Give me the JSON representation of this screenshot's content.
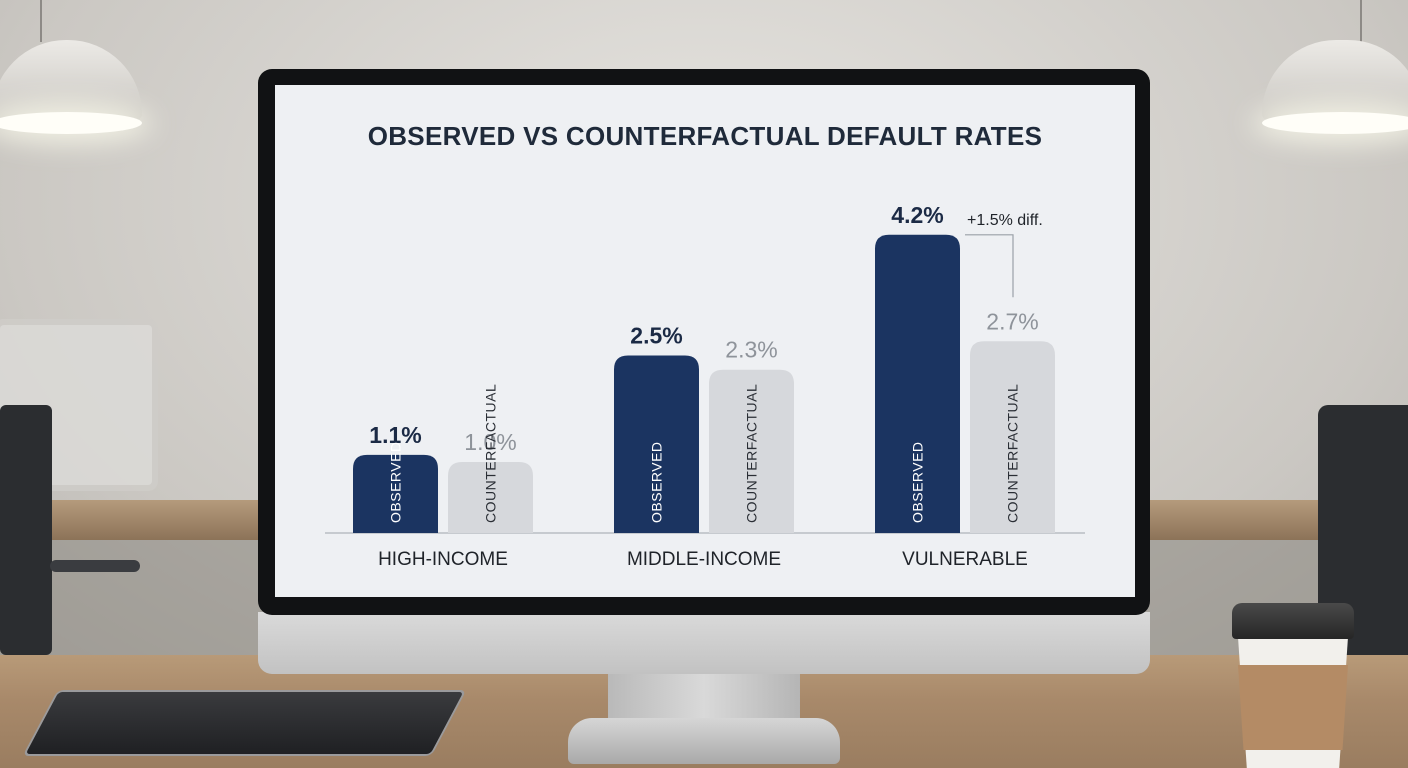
{
  "scene": {
    "description_objects": [
      "desktop monitor",
      "tablet",
      "coffee cup",
      "pendant lamps",
      "office chairs"
    ]
  },
  "chart_data": {
    "type": "bar",
    "title": "OBSERVED VS COUNTERFACTUAL DEFAULT RATES",
    "categories": [
      "HIGH-INCOME",
      "MIDDLE-INCOME",
      "VULNERABLE"
    ],
    "series": [
      {
        "name": "OBSERVED",
        "values": [
          1.1,
          2.5,
          4.2
        ],
        "labels": [
          "1.1%",
          "2.5%",
          "4.2%"
        ],
        "color": "#1b3461"
      },
      {
        "name": "COUNTERFACTUAL",
        "values": [
          1.0,
          2.3,
          2.7
        ],
        "labels": [
          "1.0%",
          "2.3%",
          "2.7%"
        ],
        "color": "#d6d8dc"
      }
    ],
    "annotation": "+1.5% diff.",
    "ylim": [
      0,
      4.8
    ],
    "grid": false
  }
}
